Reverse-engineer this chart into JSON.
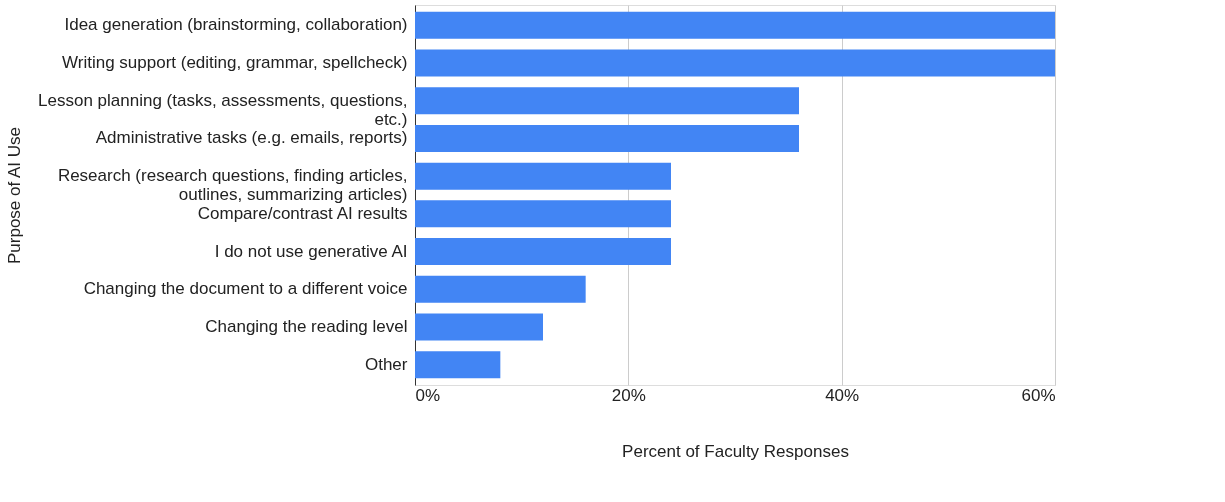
{
  "chart_data": {
    "type": "bar",
    "orientation": "horizontal",
    "xlabel": "Percent of Faculty Responses",
    "ylabel": "Purpose of AI Use",
    "categories": [
      "Idea generation (brainstorming, collaboration)",
      "Writing support (editing, grammar, spellcheck)",
      "Lesson planning (tasks, assessments, questions, etc.)",
      "Administrative tasks (e.g. emails, reports)",
      "Research (research questions, finding articles, outlines, summarizing articles)",
      "Compare/contrast AI results",
      "I do not use generative AI",
      "Changing the document to a different voice",
      "Changing the reading level",
      "Other"
    ],
    "values": [
      60,
      60,
      36,
      36,
      24,
      24,
      24,
      16,
      12,
      8
    ],
    "color": "#4285f4",
    "xlim": [
      0,
      60
    ],
    "xticks": [
      {
        "value": 0,
        "label": "0%"
      },
      {
        "value": 20,
        "label": "20%"
      },
      {
        "value": 40,
        "label": "40%"
      },
      {
        "value": 60,
        "label": "60%"
      }
    ],
    "grid": "x"
  }
}
